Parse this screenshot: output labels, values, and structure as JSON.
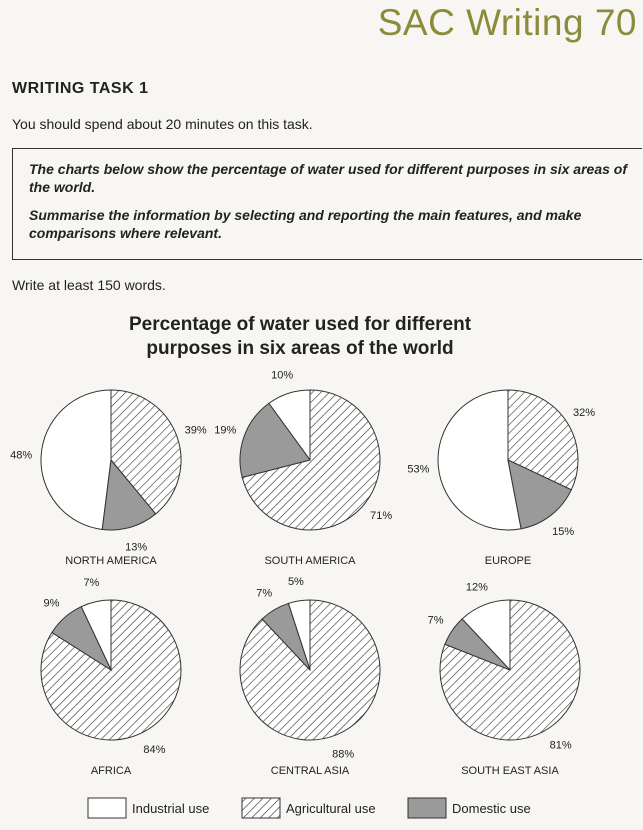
{
  "header": {
    "brand": "SAC Writing 70"
  },
  "task": {
    "title": "WRITING TASK 1",
    "instruction": "You should spend about 20 minutes on this task.",
    "prompt_line1": "The charts below show the percentage of water used for different purposes in six areas of the world.",
    "prompt_line2": "Summarise the information by selecting and reporting the main features, and make comparisons where relevant.",
    "word_count": "Write at least 150 words."
  },
  "chart_data": {
    "type": "pie",
    "title": "Percentage of water used for different purposes in six areas of the world",
    "legend": [
      "Industrial use",
      "Agricultural use",
      "Domestic use"
    ],
    "legend_position": "bottom",
    "series": [
      {
        "name": "Industrial use",
        "fill": "white"
      },
      {
        "name": "Agricultural use",
        "fill": "hatched"
      },
      {
        "name": "Domestic use",
        "fill": "#9a9a9a"
      }
    ],
    "charts": [
      {
        "region": "NORTH AMERICA",
        "values": [
          48,
          39,
          13
        ],
        "labels": [
          "48%",
          "39%",
          "13%"
        ]
      },
      {
        "region": "SOUTH AMERICA",
        "values": [
          10,
          71,
          19
        ],
        "labels": [
          "10%",
          "71%",
          "19%"
        ]
      },
      {
        "region": "EUROPE",
        "values": [
          53,
          32,
          15
        ],
        "labels": [
          "53%",
          "32%",
          "15%"
        ]
      },
      {
        "region": "AFRICA",
        "values": [
          7,
          84,
          9
        ],
        "labels": [
          "7%",
          "84%",
          "9%"
        ]
      },
      {
        "region": "CENTRAL ASIA",
        "values": [
          5,
          88,
          7
        ],
        "labels": [
          "5%",
          "88%",
          "7%"
        ]
      },
      {
        "region": "SOUTH EAST ASIA",
        "values": [
          12,
          81,
          7
        ],
        "labels": [
          "12%",
          "81%",
          "7%"
        ]
      }
    ]
  }
}
